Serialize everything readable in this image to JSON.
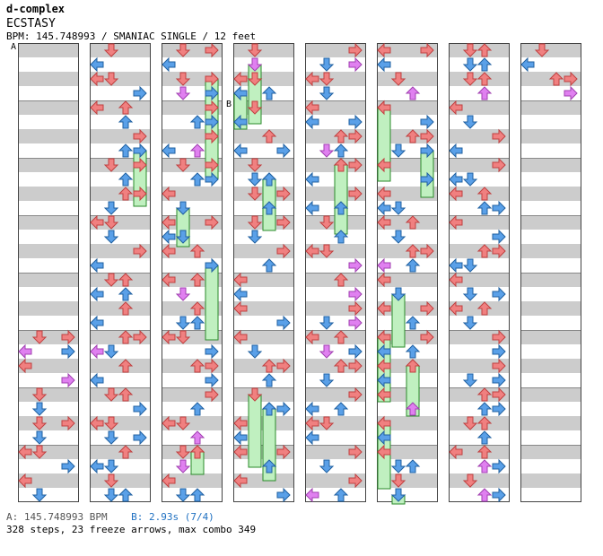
{
  "header": {
    "artist": "d-complex",
    "title": "ECSTASY",
    "info": "BPM: 145.748993 / SMANIAC SINGLE / 12 feet"
  },
  "markers": [
    {
      "label": "A",
      "column": 0,
      "measure": 0
    },
    {
      "label": "B",
      "column": 3,
      "measure": 1
    }
  ],
  "footer": {
    "bpm_label": "A: 145.748993 BPM",
    "stop_label": "B: 2.93s (7/4)",
    "stats": "328 steps, 23 freeze arrows, max combo 349"
  },
  "colors": {
    "quarter": "#f08080",
    "eighth": "#5aa0e8",
    "sixteenth": "#e080f0",
    "freeze": "#c0f0c0",
    "stripe": "#cccccc"
  },
  "chart_data": {
    "type": "step-chart",
    "lanes": [
      "left",
      "down",
      "up",
      "right"
    ],
    "columns": 8,
    "measures_per_column": 8,
    "steps": 328,
    "freeze_arrows": 23,
    "max_combo": 349
  }
}
